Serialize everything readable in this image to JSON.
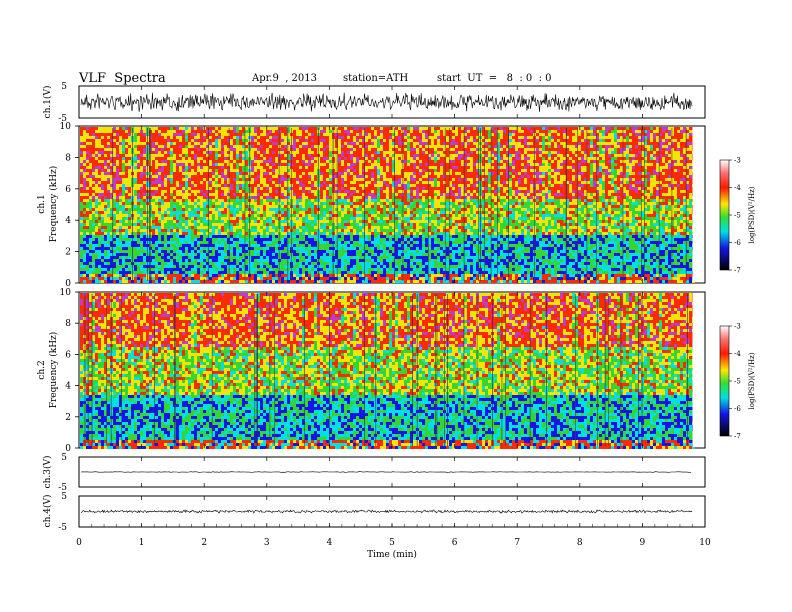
{
  "header": {
    "title": "VLF  Spectra",
    "date": "Apr.9  , 2013",
    "station": "station=ATH",
    "start": "start  UT  =   8  : 0  : 0"
  },
  "colors": {
    "spec_red": "#ff2a00",
    "spec_yellow": "#f2e600",
    "spec_green": "#33d633",
    "spec_cyan": "#00e0e0",
    "spec_blue": "#1515e6",
    "spec_magenta": "#c03ad0",
    "waveform": "#000000"
  },
  "chart_data": [
    {
      "type": "line",
      "panel": "ch1-waveform",
      "ylabel": "ch.1(V)",
      "ylim": [
        -5,
        5
      ],
      "yticks": [
        "5",
        "-5"
      ],
      "description_values": "noisy broadband waveform, amplitude roughly +/-1.5 V"
    },
    {
      "type": "heatmap",
      "panel": "ch1-spectrogram",
      "ylabel_channel": "ch.1",
      "ylabel": "Frequency  (kHz)",
      "ylim": [
        0,
        10
      ],
      "yticks": [
        "0",
        "2",
        "4",
        "6",
        "8",
        "10"
      ],
      "colorbar": {
        "label": "log(PSD)(V²/Hz)",
        "range": [
          -7,
          -3
        ],
        "ticks": [
          "-3",
          "-4",
          "-5",
          "-6",
          "-7"
        ]
      },
      "bands": [
        {
          "from_khz": 0,
          "to_khz": 0.6,
          "level": "red/yellow lines"
        },
        {
          "from_khz": 0.6,
          "to_khz": 3.2,
          "level": "cyan/blue/green"
        },
        {
          "from_khz": 3.2,
          "to_khz": 5.5,
          "level": "green/yellow"
        },
        {
          "from_khz": 5.5,
          "to_khz": 10,
          "level": "red/yellow"
        }
      ]
    },
    {
      "type": "heatmap",
      "panel": "ch2-spectrogram",
      "ylabel_channel": "ch.2",
      "ylabel": "Frequency  (kHz)",
      "ylim": [
        0,
        10
      ],
      "yticks": [
        "0",
        "2",
        "4",
        "6",
        "8",
        "10"
      ],
      "colorbar": {
        "label": "log(PSD)(V²/Hz)",
        "range": [
          -7,
          -3
        ],
        "ticks": [
          "-3",
          "-4",
          "-5",
          "-6",
          "-7"
        ]
      },
      "bands": [
        {
          "from_khz": 0,
          "to_khz": 0.6,
          "level": "red/yellow lines"
        },
        {
          "from_khz": 0.6,
          "to_khz": 3.5,
          "level": "cyan/blue/green"
        },
        {
          "from_khz": 3.5,
          "to_khz": 6.5,
          "level": "green/yellow"
        },
        {
          "from_khz": 6.5,
          "to_khz": 10,
          "level": "red/yellow"
        }
      ]
    },
    {
      "type": "line",
      "panel": "ch3-waveform",
      "ylabel": "ch.3(V)",
      "ylim": [
        -5,
        5
      ],
      "yticks": [
        "5",
        "-5"
      ],
      "description_values": "flat trace near 0 V"
    },
    {
      "type": "line",
      "panel": "ch4-waveform",
      "ylabel": "ch.4(V)",
      "ylim": [
        -5,
        5
      ],
      "yticks": [
        "5",
        "-5"
      ],
      "description_values": "thick flat trace near 0 V"
    }
  ],
  "xaxis": {
    "xlabel": "Time  (min)",
    "xlim": [
      0,
      10
    ],
    "data_end_min": 9.8,
    "ticks": [
      "0",
      "1",
      "2",
      "3",
      "4",
      "5",
      "6",
      "7",
      "8",
      "9",
      "10"
    ]
  }
}
